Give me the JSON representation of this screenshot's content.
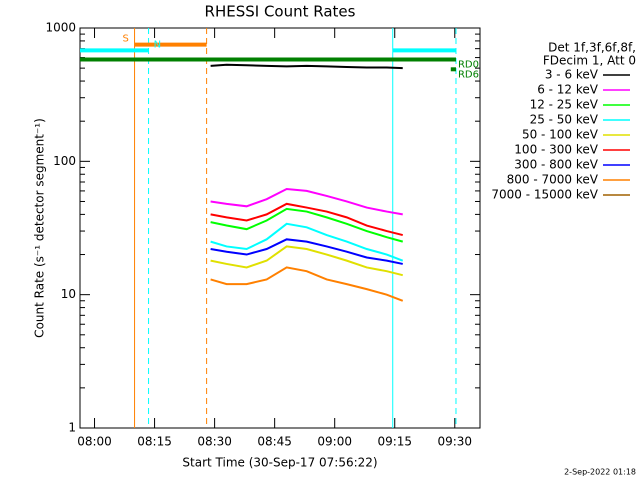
{
  "chart_data": {
    "type": "line",
    "title": "RHESSI Count Rates",
    "x_label": "Start Time (30-Sep-17 07:56:22)",
    "y_label": "Count Rate (s⁻¹ detector segment⁻¹)",
    "legend_title": [
      "Det 1f,3f,6f,8f,",
      "FDecim 1, Att 0"
    ],
    "footer": "2-Sep-2022 01:18",
    "log_y": true,
    "xlim": [
      476.37,
      576.3
    ],
    "ylim": [
      1,
      1000
    ],
    "xticks": [
      {
        "value": 480,
        "label": "08:00"
      },
      {
        "value": 495,
        "label": "08:15"
      },
      {
        "value": 510,
        "label": "08:30"
      },
      {
        "value": 525,
        "label": "08:45"
      },
      {
        "value": 540,
        "label": "09:00"
      },
      {
        "value": 555,
        "label": "09:15"
      },
      {
        "value": 570,
        "label": "09:30"
      }
    ],
    "yticks": [
      1,
      10,
      100,
      1000
    ],
    "x": [
      509,
      513,
      518,
      523,
      528,
      533,
      538,
      543,
      548,
      553,
      557
    ],
    "series": [
      {
        "name": "3 - 6 keV",
        "color": "#000000",
        "values": [
          520,
          530,
          525,
          520,
          515,
          520,
          515,
          510,
          505,
          505,
          500
        ]
      },
      {
        "name": "6 - 12 keV",
        "color": "#ff00ff",
        "values": [
          50,
          48,
          46,
          52,
          62,
          60,
          55,
          50,
          45,
          42,
          40
        ]
      },
      {
        "name": "12 - 25 keV",
        "color": "#00ff00",
        "values": [
          35,
          33,
          31,
          36,
          44,
          42,
          38,
          34,
          30,
          27,
          25
        ]
      },
      {
        "name": "25 - 50 keV",
        "color": "#00ffff",
        "values": [
          25,
          23,
          22,
          26,
          34,
          32,
          28,
          25,
          22,
          20,
          18
        ]
      },
      {
        "name": "50 - 100 keV",
        "color": "#e0e000",
        "values": [
          18,
          17,
          16,
          18,
          23,
          22,
          20,
          18,
          16,
          15,
          14
        ]
      },
      {
        "name": "100 - 300 keV",
        "color": "#ff0000",
        "values": [
          40,
          38,
          36,
          40,
          48,
          45,
          42,
          38,
          33,
          30,
          28
        ]
      },
      {
        "name": "300 - 800 keV",
        "color": "#0000ff",
        "values": [
          22,
          21,
          20,
          22,
          26,
          25,
          23,
          21,
          19,
          18,
          17
        ]
      },
      {
        "name": "800 - 7000 keV",
        "color": "#ff8000",
        "values": [
          13,
          12,
          12,
          13,
          16,
          15,
          13,
          12,
          11,
          10,
          9
        ]
      },
      {
        "name": "7000 - 15000 keV",
        "color": "#a06000",
        "values": [
          null,
          null,
          null,
          null,
          null,
          null,
          null,
          null,
          null,
          null,
          null
        ]
      }
    ],
    "vlines": [
      {
        "x": 490,
        "color": "#ff8000",
        "dashed": false
      },
      {
        "x": 493.5,
        "color": "#00ffff",
        "dashed": true
      },
      {
        "x": 508,
        "color": "#ff8000",
        "dashed": true
      },
      {
        "x": 554.5,
        "color": "#00ffff",
        "dashed": false
      },
      {
        "x": 570.3,
        "color": "#00ffff",
        "dashed": true
      }
    ],
    "flags": [
      {
        "label": "S",
        "x": [
          490,
          508
        ],
        "y": 750,
        "color": "#ff8000"
      },
      {
        "label": "N",
        "x": [
          476.37,
          493.5
        ],
        "y": 680,
        "color": "#00ffff"
      },
      {
        "label": "RD0",
        "x": [
          476.37,
          570.3
        ],
        "y": 580,
        "color": "#008000"
      },
      {
        "label": "RD6",
        "x": [
          569,
          570.3
        ],
        "y": 490,
        "color": "#008000"
      }
    ],
    "flags_extra": [
      {
        "x": [
          554.5,
          570.3
        ],
        "y": 680,
        "color": "#00ffff"
      }
    ]
  }
}
